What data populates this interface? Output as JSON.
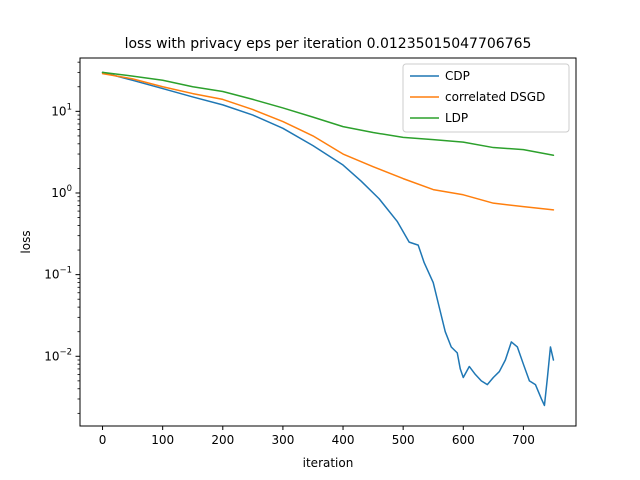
{
  "chart_data": {
    "type": "line",
    "title": "loss with privacy eps per iteration 0.01235015047706765",
    "xlabel": "iteration",
    "ylabel": "loss",
    "xscale": "linear",
    "yscale": "log",
    "xlim": [
      -37.5,
      787.5
    ],
    "ylim": [
      0.0014,
      45
    ],
    "x_ticks": [
      0,
      100,
      200,
      300,
      400,
      500,
      600,
      700
    ],
    "x_tick_labels": [
      "0",
      "100",
      "200",
      "300",
      "400",
      "500",
      "600",
      "700"
    ],
    "y_ticks": [
      {
        "value": 10,
        "base": "10",
        "exp": "1"
      },
      {
        "value": 1,
        "base": "10",
        "exp": "0"
      },
      {
        "value": 0.1,
        "base": "10",
        "exp": "−1"
      },
      {
        "value": 0.01,
        "base": "10",
        "exp": "−2"
      }
    ],
    "grid": false,
    "legend_position": "upper right",
    "series": [
      {
        "name": "CDP",
        "color": "#1f77b4",
        "points": [
          [
            0,
            30
          ],
          [
            50,
            24
          ],
          [
            100,
            19
          ],
          [
            150,
            15
          ],
          [
            200,
            12
          ],
          [
            250,
            9
          ],
          [
            300,
            6.2
          ],
          [
            350,
            3.8
          ],
          [
            400,
            2.2
          ],
          [
            430,
            1.4
          ],
          [
            460,
            0.85
          ],
          [
            490,
            0.45
          ],
          [
            510,
            0.25
          ],
          [
            525,
            0.23
          ],
          [
            535,
            0.14
          ],
          [
            550,
            0.08
          ],
          [
            560,
            0.04
          ],
          [
            570,
            0.02
          ],
          [
            580,
            0.013
          ],
          [
            590,
            0.011
          ],
          [
            595,
            0.007
          ],
          [
            600,
            0.0055
          ],
          [
            610,
            0.0075
          ],
          [
            620,
            0.006
          ],
          [
            630,
            0.005
          ],
          [
            640,
            0.0045
          ],
          [
            650,
            0.0055
          ],
          [
            660,
            0.0065
          ],
          [
            670,
            0.009
          ],
          [
            680,
            0.015
          ],
          [
            690,
            0.013
          ],
          [
            700,
            0.008
          ],
          [
            710,
            0.005
          ],
          [
            720,
            0.0045
          ],
          [
            730,
            0.003
          ],
          [
            735,
            0.0025
          ],
          [
            740,
            0.0055
          ],
          [
            745,
            0.013
          ],
          [
            750,
            0.009
          ]
        ]
      },
      {
        "name": "correlated DSGD",
        "color": "#ff7f0e",
        "points": [
          [
            0,
            29
          ],
          [
            50,
            25
          ],
          [
            100,
            20
          ],
          [
            150,
            16.5
          ],
          [
            200,
            14
          ],
          [
            250,
            10.5
          ],
          [
            300,
            7.5
          ],
          [
            350,
            5
          ],
          [
            400,
            3
          ],
          [
            450,
            2.1
          ],
          [
            500,
            1.5
          ],
          [
            550,
            1.1
          ],
          [
            600,
            0.95
          ],
          [
            650,
            0.75
          ],
          [
            700,
            0.68
          ],
          [
            750,
            0.62
          ]
        ]
      },
      {
        "name": "LDP",
        "color": "#2ca02c",
        "points": [
          [
            0,
            30
          ],
          [
            50,
            27
          ],
          [
            100,
            24
          ],
          [
            150,
            20
          ],
          [
            200,
            17.5
          ],
          [
            250,
            14
          ],
          [
            300,
            11
          ],
          [
            350,
            8.5
          ],
          [
            400,
            6.5
          ],
          [
            450,
            5.5
          ],
          [
            500,
            4.8
          ],
          [
            550,
            4.5
          ],
          [
            600,
            4.2
          ],
          [
            650,
            3.6
          ],
          [
            700,
            3.4
          ],
          [
            750,
            2.9
          ]
        ]
      }
    ]
  }
}
